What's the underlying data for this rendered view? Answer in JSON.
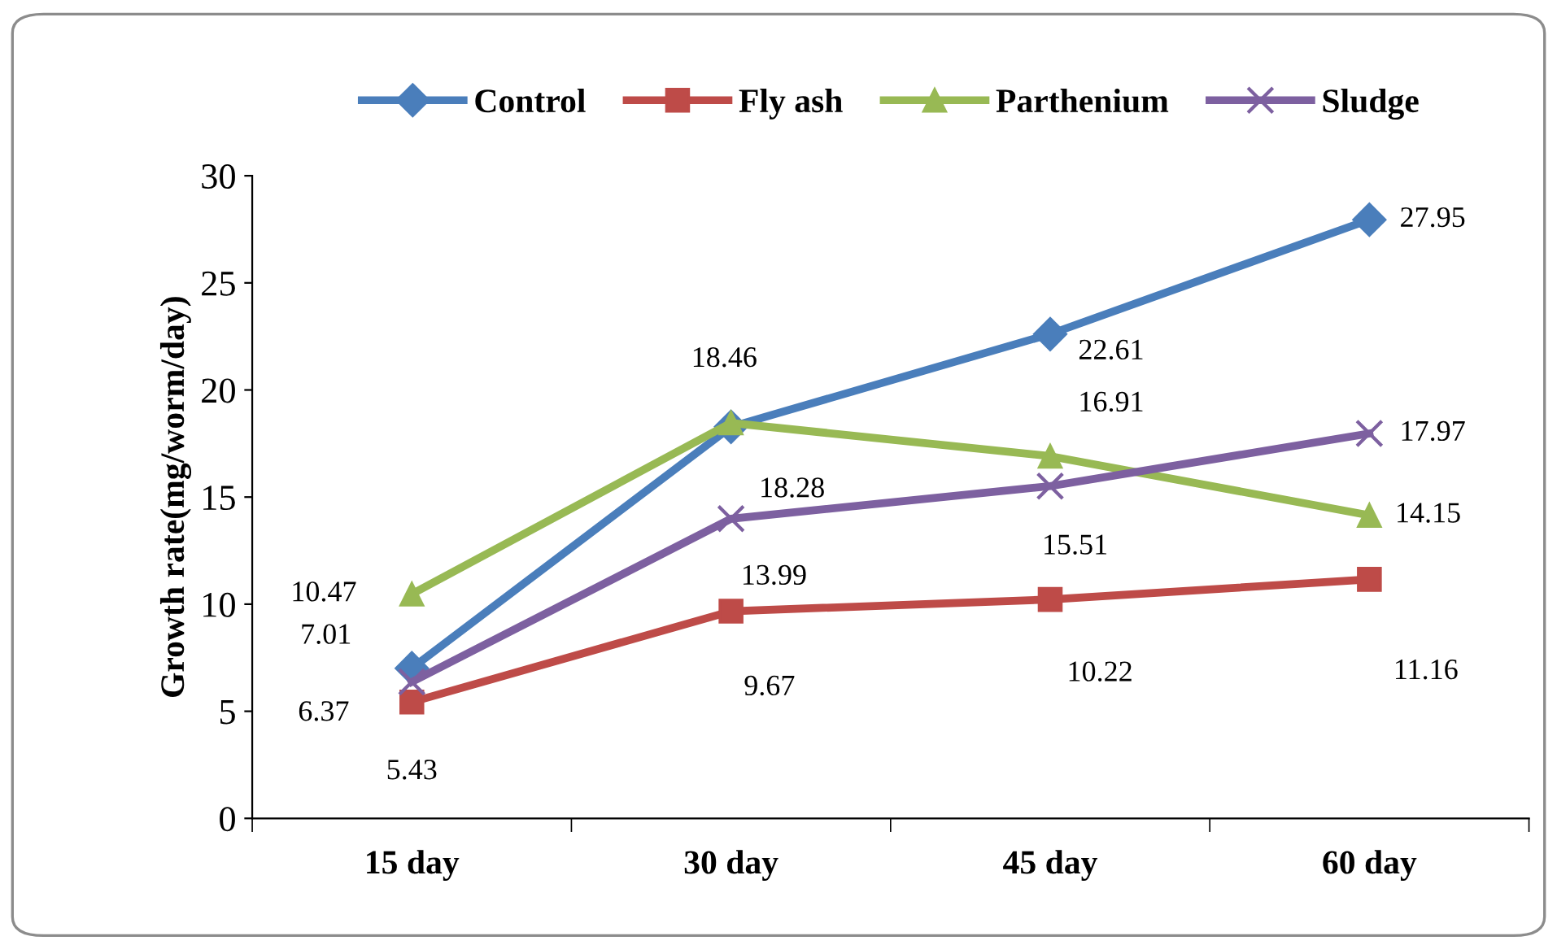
{
  "chart_data": {
    "type": "line",
    "ylabel": "Growth rate(mg/worm/day)",
    "categories": [
      "15 day",
      "30 day",
      "45 day",
      "60 day"
    ],
    "series": [
      {
        "name": "Control",
        "color": "#4a7ebb",
        "marker": "diamond",
        "values": [
          7.01,
          18.28,
          22.61,
          27.95
        ]
      },
      {
        "name": "Fly ash",
        "color": "#be4b48",
        "marker": "square",
        "values": [
          5.43,
          9.67,
          10.22,
          11.16
        ]
      },
      {
        "name": "Parthenium",
        "color": "#98b954",
        "marker": "triangle",
        "values": [
          10.47,
          18.46,
          16.91,
          14.15
        ]
      },
      {
        "name": "Sludge",
        "color": "#7d60a0",
        "marker": "cross",
        "values": [
          6.37,
          13.99,
          15.51,
          17.97
        ]
      }
    ],
    "ylim": [
      0,
      30
    ],
    "yticks": [
      0,
      5,
      10,
      15,
      20,
      25,
      30
    ],
    "grid": false,
    "legend": "top",
    "data_labels": true
  }
}
